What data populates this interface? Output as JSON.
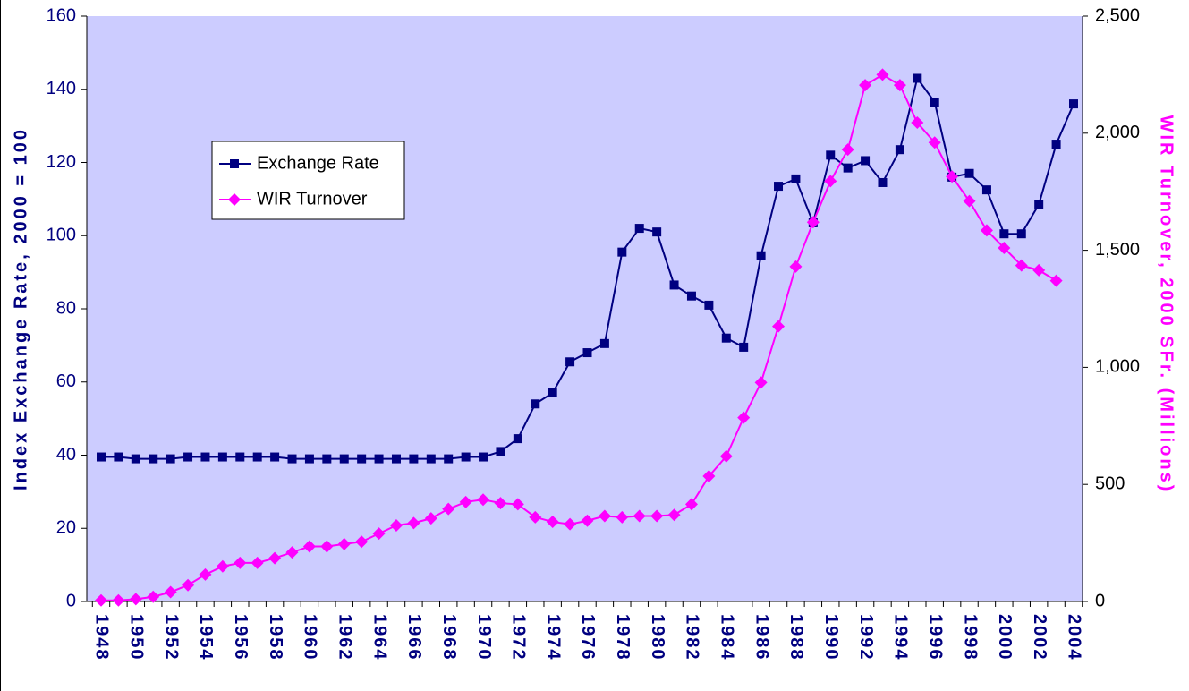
{
  "chart_data": {
    "type": "line",
    "categories": [
      1948,
      null,
      1950,
      null,
      1952,
      null,
      1954,
      null,
      1956,
      null,
      1958,
      null,
      1960,
      null,
      1962,
      null,
      1964,
      null,
      1966,
      null,
      1968,
      null,
      1970,
      null,
      1972,
      null,
      1974,
      null,
      1976,
      null,
      1978,
      null,
      1980,
      null,
      1982,
      null,
      1984,
      null,
      1986,
      null,
      1988,
      null,
      1990,
      null,
      1992,
      null,
      1994,
      null,
      1996,
      null,
      1998,
      null,
      2000,
      null,
      2002,
      null,
      2004
    ],
    "series": [
      {
        "name": "Exchange Rate",
        "color": "#000080",
        "marker": "square",
        "values": [
          39.5,
          39.5,
          39,
          39,
          39,
          39.5,
          39.5,
          39.5,
          39.5,
          39.5,
          39.5,
          39,
          39,
          39,
          39,
          39,
          39,
          39,
          39,
          39,
          39,
          39.5,
          39.5,
          41,
          44.5,
          54,
          57,
          65.5,
          68,
          70.5,
          95.5,
          102,
          101,
          86.5,
          83.5,
          81,
          72,
          69.5,
          94.5,
          113.5,
          115.5,
          103.5,
          122,
          118.5,
          120.5,
          114.5,
          123.5,
          143,
          136.5,
          116,
          117,
          112.5,
          100.5,
          100.5,
          108.5,
          125,
          136
        ]
      },
      {
        "name": "WIR Turnover",
        "color": "#ff00ff",
        "marker": "diamond",
        "axis": "y2",
        "values": [
          5,
          5,
          10,
          20,
          40,
          70,
          115,
          150,
          165,
          165,
          185,
          210,
          235,
          235,
          245,
          255,
          290,
          325,
          335,
          355,
          395,
          425,
          435,
          420,
          415,
          360,
          340,
          330,
          345,
          365,
          360,
          365,
          365,
          370,
          415,
          535,
          620,
          785,
          935,
          1175,
          1430,
          1620,
          1795,
          1930,
          2205,
          2250,
          2205,
          2045,
          1960,
          1815,
          1710,
          1585,
          1510,
          1435,
          1415,
          1370,
          null
        ]
      }
    ],
    "y_label": "Index Exchange Rate, 2000 = 100",
    "y2_label": "WIR Turnover, 2000 SFr. (Millions)",
    "ylim": [
      0,
      160
    ],
    "yticks": [
      0,
      20,
      40,
      60,
      80,
      100,
      120,
      140,
      160
    ],
    "y2lim": [
      0,
      2500
    ],
    "y2ticks": [
      0,
      {
        "value": 500,
        "label": "500"
      },
      {
        "value": 1000,
        "label": "1,000"
      },
      {
        "value": 1500,
        "label": "1,500"
      },
      {
        "value": 2000,
        "label": "2,000"
      },
      {
        "value": 2500,
        "label": "2,500"
      }
    ],
    "legend": "upper left",
    "background": "#ccccff"
  }
}
